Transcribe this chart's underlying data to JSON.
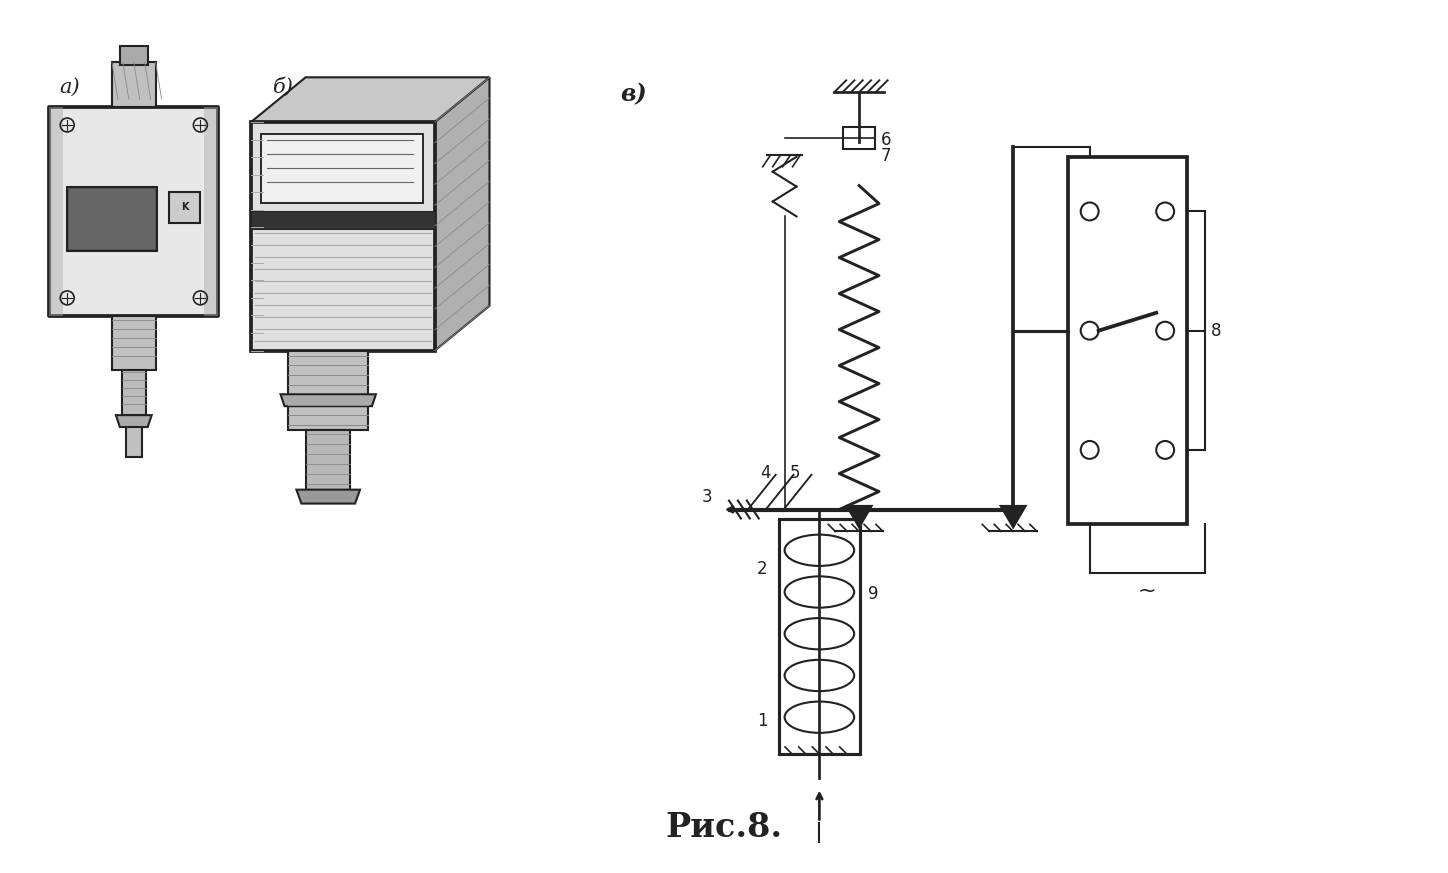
{
  "caption": "Рис.8.",
  "caption_fontsize": 24,
  "caption_fontweight": "bold",
  "bg_color": "#ffffff",
  "fig_width": 14.48,
  "fig_height": 8.73,
  "label_a": "а)",
  "label_b": "б)",
  "label_v": "в)",
  "label_fontsize": 15,
  "line_color": "#222222",
  "line_width": 1.5
}
